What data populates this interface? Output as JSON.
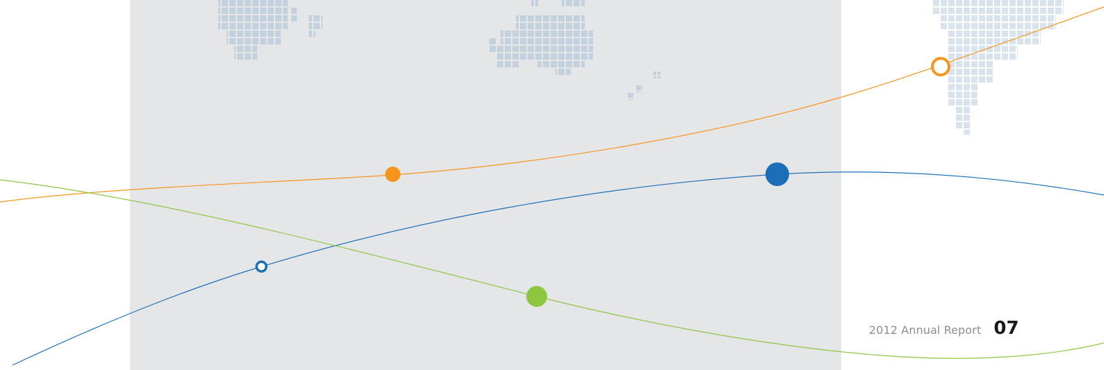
{
  "footer": {
    "report_label": "2012 Annual Report",
    "page_number": "07"
  },
  "colors": {
    "panel": "#e5e6e8",
    "map_dots": "#c3d0dd",
    "map_dots_light": "#d8e3ee",
    "orange": "#f7941d",
    "blue": "#1a6fb8",
    "green": "#8dc63f"
  }
}
